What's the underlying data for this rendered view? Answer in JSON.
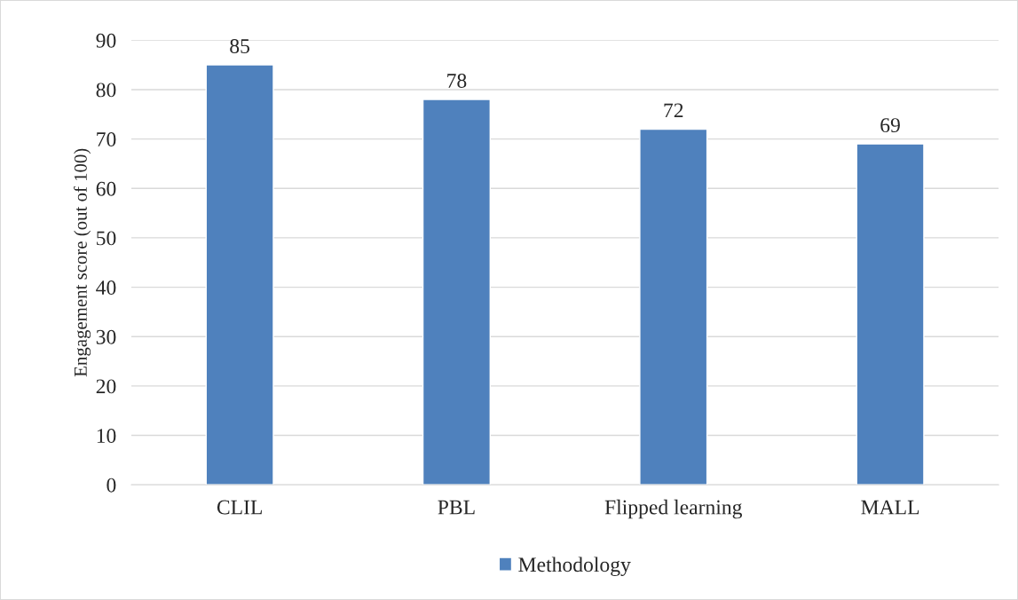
{
  "chart_data": {
    "type": "bar",
    "ylabel": "Engagement score (out of 100)",
    "categories": [
      "CLIL",
      "PBL",
      "Flipped learning",
      "MALL"
    ],
    "series": [
      {
        "name": "Methodology",
        "color": "#4f81bd",
        "values": [
          85,
          78,
          72,
          69
        ]
      }
    ],
    "ylim": [
      0,
      90
    ],
    "yticks": [
      0,
      10,
      20,
      30,
      40,
      50,
      60,
      70,
      80,
      90
    ],
    "grid": "y",
    "legend": "bottom",
    "data_labels": true
  }
}
